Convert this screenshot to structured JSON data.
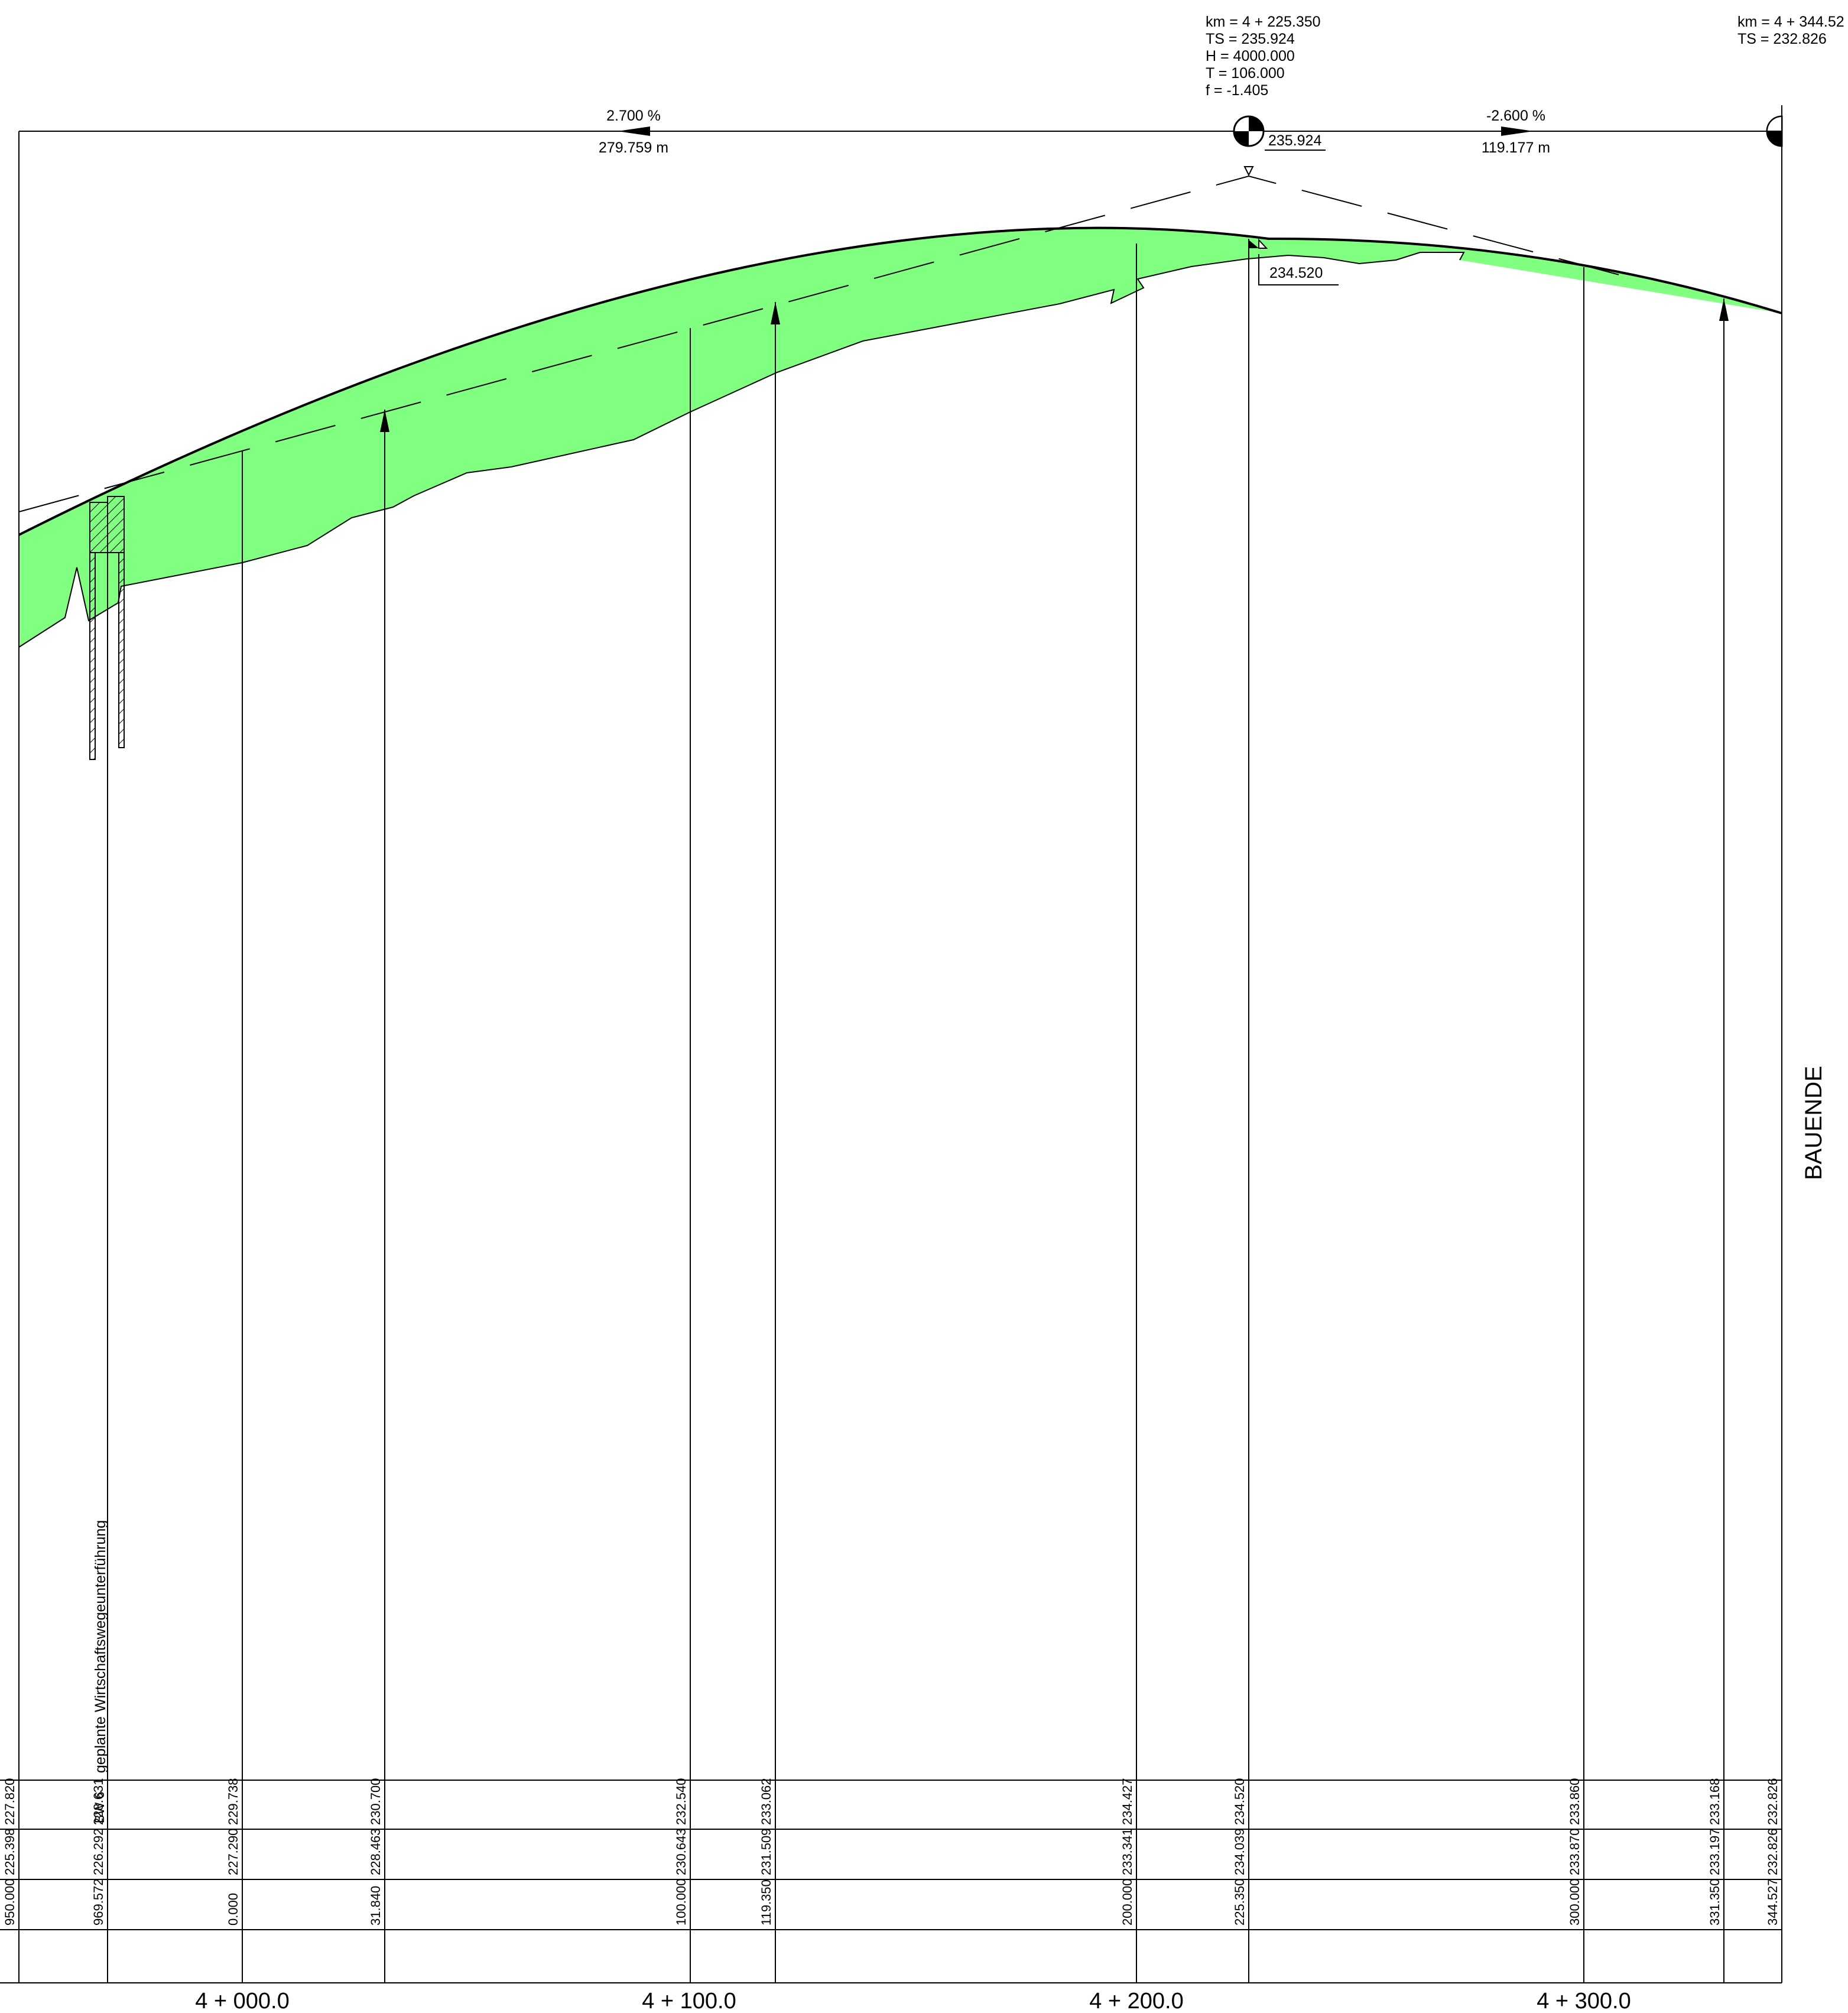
{
  "curve_info": {
    "vertex_lines": [
      "km = 4 + 225.350",
      "TS = 235.924",
      "H  = 4000.000",
      "T   = 106.000",
      "f    = -1.405"
    ],
    "end_lines": [
      "km = 4 + 344.52",
      "TS = 232.826"
    ]
  },
  "grades": {
    "left": {
      "percent": "2.700 %",
      "length": "279.759 m"
    },
    "right": {
      "percent": "-2.600 %",
      "length": "119.177 m"
    }
  },
  "levels": {
    "vertex_level": "235.924",
    "design_level": "234.520"
  },
  "labels": {
    "bauende": "BAUENDE",
    "structure": "geplante Wirtschaftswegeunterführung",
    "bw": "BW 6"
  },
  "band_values": [
    {
      "row1": "227.820",
      "row2": "225.398",
      "row3": "950.000"
    },
    {
      "row1": "228.631",
      "row2": "226.292",
      "row3": "969.572"
    },
    {
      "row1": "229.738",
      "row2": "227.290",
      "row3": "0.000"
    },
    {
      "row1": "230.700",
      "row2": "228.463",
      "row3": "31.840"
    },
    {
      "row1": "232.540",
      "row2": "230.643",
      "row3": "100.000"
    },
    {
      "row1": "233.062",
      "row2": "231.509",
      "row3": "119.350"
    },
    {
      "row1": "234.427",
      "row2": "233.341",
      "row3": "200.000"
    },
    {
      "row1": "234.520",
      "row2": "234.039",
      "row3": "225.350"
    },
    {
      "row1": "233.860",
      "row2": "233.870",
      "row3": "300.000"
    },
    {
      "row1": "233.168",
      "row2": "233.197",
      "row3": "331.350"
    },
    {
      "row1": "232.826",
      "row2": "232.826",
      "row3": "344.527"
    }
  ],
  "stations": [
    "4 + 000.0",
    "4 + 100.0",
    "4 + 200.0",
    "4 + 300.0"
  ],
  "colors": {
    "fill": "#80ff80",
    "line": "#000000"
  }
}
